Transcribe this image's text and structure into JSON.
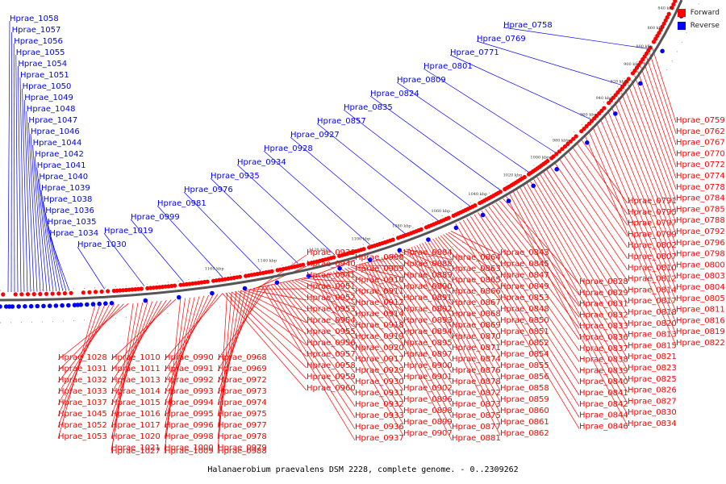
{
  "legend": {
    "forward": {
      "label": "Forward",
      "color": "#ff0000"
    },
    "reverse": {
      "label": "Reverse",
      "color": "#0000ff"
    }
  },
  "caption": "Halanaerobium praevalens DSM 2228, complete genome. - 0..2309262",
  "ticks": [
    "840 kbp",
    "860 kbp",
    "880 kbp",
    "900 kbp",
    "920 kbp",
    "940 kbp",
    "960 kbp",
    "980 kbp",
    "1000 kbp",
    "1020 kbp",
    "1040 kbp",
    "1060 kbp",
    "1080 kbp",
    "1100 kbp",
    "1120 kbp",
    "1140 kbp",
    "1160 kbp"
  ],
  "reverse_labels": [
    "Hprae_1058",
    "Hprae_1057",
    "Hprae_1056",
    "Hprae_1055",
    "Hprae_1054",
    "Hprae_1051",
    "Hprae_1050",
    "Hprae_1049",
    "Hprae_1048",
    "Hprae_1047",
    "Hprae_1046",
    "Hprae_1044",
    "Hprae_1042",
    "Hprae_1041",
    "Hprae_1040",
    "Hprae_1039",
    "Hprae_1038",
    "Hprae_1036",
    "Hprae_1035",
    "Hprae_1034",
    "Hprae_1030",
    "Hprae_1019",
    "Hprae_0999",
    "Hprae_0981",
    "Hprae_0976",
    "Hprae_0935",
    "Hprae_0934",
    "Hprae_0928",
    "Hprae_0927",
    "Hprae_0857",
    "Hprae_0835",
    "Hprae_0824",
    "Hprae_0809",
    "Hprae_0801",
    "Hprae_0771",
    "Hprae_0769",
    "Hprae_0758"
  ],
  "forward_right_labels": [
    "Hprae_0759",
    "Hprae_0762",
    "Hprae_0767",
    "Hprae_0770",
    "Hprae_0772",
    "Hprae_0774",
    "Hprae_0778",
    "Hprae_0784",
    "Hprae_0785",
    "Hprae_0788",
    "Hprae_0792",
    "Hprae_0796",
    "Hprae_0798",
    "Hprae_0800",
    "Hprae_0803",
    "Hprae_0804",
    "Hprae_0805",
    "Hprae_0811",
    "Hprae_0816",
    "Hprae_0819",
    "Hprae_0822",
    "Hprae_0791",
    "Hprae_0795",
    "Hprae_0797",
    "Hprae_0799",
    "Hprae_0802",
    "Hprae_0807",
    "Hprae_0810",
    "Hprae_0812",
    "Hprae_0814",
    "Hprae_0817",
    "Hprae_0818",
    "Hprae_0820",
    "Hprae_0813",
    "Hprae_0815",
    "Hprae_0821",
    "Hprae_0823",
    "Hprae_0825",
    "Hprae_0826",
    "Hprae_0827",
    "Hprae_0830",
    "Hprae_0834",
    "Hprae_0828",
    "Hprae_0829",
    "Hprae_0831",
    "Hprae_0832",
    "Hprae_0833",
    "Hprae_0836",
    "Hprae_0837",
    "Hprae_0838",
    "Hprae_0839",
    "Hprae_0840",
    "Hprae_0841",
    "Hprae_0842",
    "Hprae_0844",
    "Hprae_0846"
  ],
  "forward_mid_labels": [
    "Hprae_0843",
    "Hprae_0845",
    "Hprae_0847",
    "Hprae_0849",
    "Hprae_0853",
    "Hprae_0848",
    "Hprae_0850",
    "Hprae_0851",
    "Hprae_0852",
    "Hprae_0854",
    "Hprae_0855",
    "Hprae_0856",
    "Hprae_0858",
    "Hprae_0859",
    "Hprae_0860",
    "Hprae_0861",
    "Hprae_0862",
    "Hprae_0864",
    "Hprae_0863",
    "Hprae_0865",
    "Hprae_0866",
    "Hprae_0867",
    "Hprae_0868",
    "Hprae_0869",
    "Hprae_0870",
    "Hprae_0871",
    "Hprae_0874",
    "Hprae_0876",
    "Hprae_0878",
    "Hprae_0872",
    "Hprae_0873",
    "Hprae_0875",
    "Hprae_0877",
    "Hprae_0881",
    "Hprae_0884",
    "Hprae_0888",
    "Hprae_0889",
    "Hprae_0890",
    "Hprae_0891",
    "Hprae_0892",
    "Hprae_0893",
    "Hprae_0894",
    "Hprae_0895",
    "Hprae_0897",
    "Hprae_0900",
    "Hprae_0901",
    "Hprae_0902",
    "Hprae_0896",
    "Hprae_0898",
    "Hprae_0899",
    "Hprae_0907",
    "Hprae_0908",
    "Hprae_0909",
    "Hprae_0910",
    "Hprae_0911",
    "Hprae_0912",
    "Hprae_0914",
    "Hprae_0918",
    "Hprae_0919",
    "Hprae_0920",
    "Hprae_0917",
    "Hprae_0929",
    "Hprae_0930",
    "Hprae_0931",
    "Hprae_0932",
    "Hprae_0933",
    "Hprae_0936",
    "Hprae_0937",
    "Hprae_0939",
    "Hprae_0940",
    "Hprae_0941",
    "Hprae_0951",
    "Hprae_0952",
    "Hprae_0953",
    "Hprae_0954",
    "Hprae_0955",
    "Hprae_0956",
    "Hprae_0957",
    "Hprae_0958",
    "Hprae_0959",
    "Hprae_0960"
  ],
  "forward_left_labels": [
    "Hprae_0968",
    "Hprae_0969",
    "Hprae_0972",
    "Hprae_0973",
    "Hprae_0974",
    "Hprae_0975",
    "Hprae_0977",
    "Hprae_0978",
    "Hprae_0979",
    "Hprae_0988",
    "Hprae_0990",
    "Hprae_0991",
    "Hprae_0992",
    "Hprae_0993",
    "Hprae_0994",
    "Hprae_0995",
    "Hprae_0996",
    "Hprae_0998",
    "Hprae_1000",
    "Hprae_1009",
    "Hprae_1010",
    "Hprae_1011",
    "Hprae_1013",
    "Hprae_1014",
    "Hprae_1015",
    "Hprae_1016",
    "Hprae_1017",
    "Hprae_1020",
    "Hprae_1021",
    "Hprae_1027",
    "Hprae_1028",
    "Hprae_1031",
    "Hprae_1032",
    "Hprae_1033",
    "Hprae_1037",
    "Hprae_1045",
    "Hprae_1052",
    "Hprae_1053"
  ]
}
